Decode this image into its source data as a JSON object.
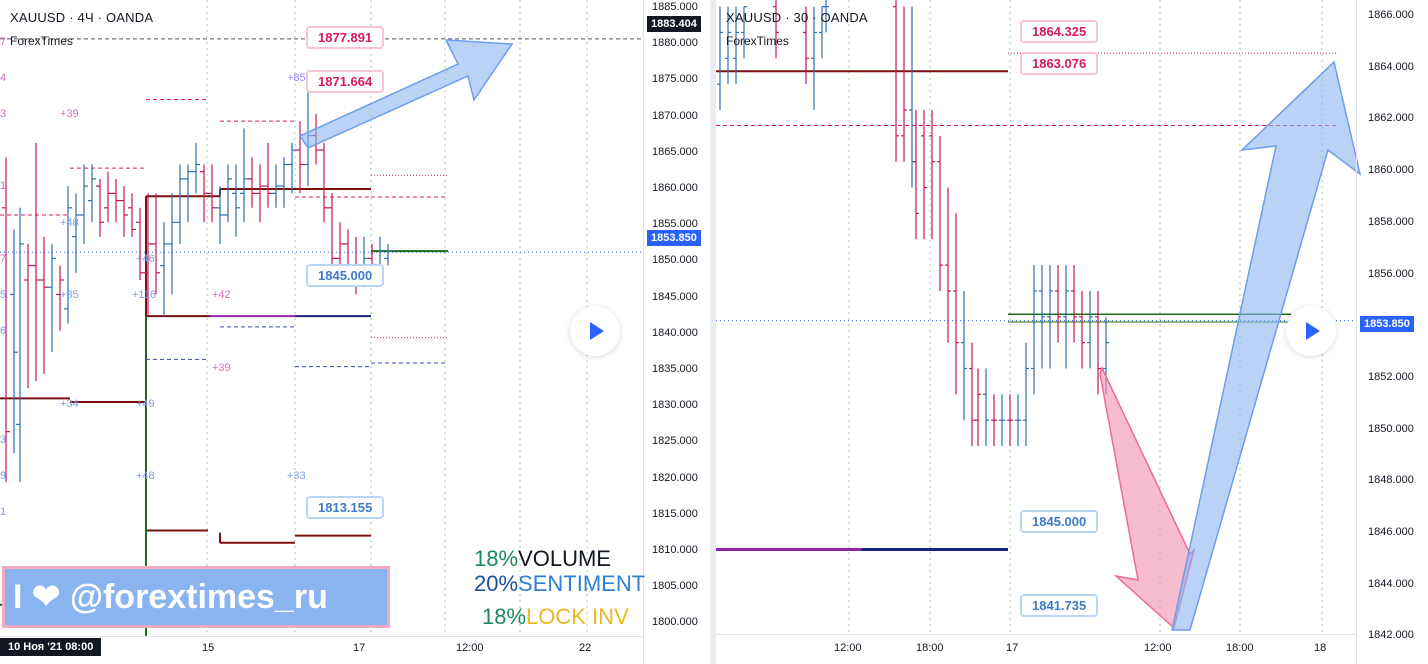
{
  "left_chart": {
    "title": "XAUUSD · 4Ч · OANDA",
    "subtitle": "ForexTimes",
    "price_axis": [
      "1885.000",
      "1880.000",
      "1875.000",
      "1870.000",
      "1865.000",
      "1860.000",
      "1855.000",
      "1850.000",
      "1845.000",
      "1840.000",
      "1835.000",
      "1830.000",
      "1825.000",
      "1820.000",
      "1815.000",
      "1810.000",
      "1805.000",
      "1800.000"
    ],
    "current_price": "1853.850",
    "top_price": "1883.404",
    "time_axis": [
      "15",
      "17",
      "12:00",
      "22"
    ],
    "date_label": "10 Ноя '21  08:00",
    "callouts": {
      "c1": "1877.891",
      "c2": "1871.664",
      "c3": "1845.000",
      "c4": "1813.155"
    },
    "level_marks": [
      "+85",
      "+39",
      "+48",
      "+46",
      "+35",
      "+116",
      "+42",
      "+39",
      "+34",
      "+49",
      "+48",
      "+33"
    ],
    "edge_marks": [
      "7",
      "4",
      "3",
      "1",
      "7",
      "5",
      "6",
      "3",
      "9",
      "1"
    ],
    "stats": [
      {
        "pct": "18%",
        "label": "VOLUME",
        "pct_color": "#1b8a5a",
        "label_color": "#131722"
      },
      {
        "pct": "20%",
        "label": "SENTIMENT",
        "pct_color": "#1a4fa0",
        "label_color": "#2e7fd6"
      },
      {
        "pct": "18%",
        "label": "LOCK INV",
        "pct_color": "#1b8a5a",
        "label_color": "#e8b923"
      }
    ],
    "banner_text": "I ❤ @forextimes_ru"
  },
  "right_chart": {
    "title": "XAUUSD · 30 · OANDA",
    "subtitle": "ForexTimes",
    "price_axis": [
      "1866.000",
      "1864.000",
      "1862.000",
      "1860.000",
      "1858.000",
      "1856.000",
      "1854.000",
      "1852.000",
      "1850.000",
      "1848.000",
      "1846.000",
      "1844.000",
      "1842.000"
    ],
    "current_price": "1853.850",
    "time_axis": [
      "12:00",
      "18:00",
      "17",
      "12:00",
      "18:00",
      "18"
    ],
    "callouts": {
      "c1": "1864.325",
      "c2": "1863.076",
      "c3": "1845.000",
      "c4": "1841.735"
    }
  },
  "colors": {
    "bull": "#2e6fb0",
    "bear": "#c2185b",
    "level_dark": "#7b1010",
    "level_blue": "#1a237e",
    "level_green": "#1b6e1b",
    "arrow_blue": "#8ab4f0",
    "arrow_pink": "#f48fb1",
    "accent": "#2962ff"
  }
}
